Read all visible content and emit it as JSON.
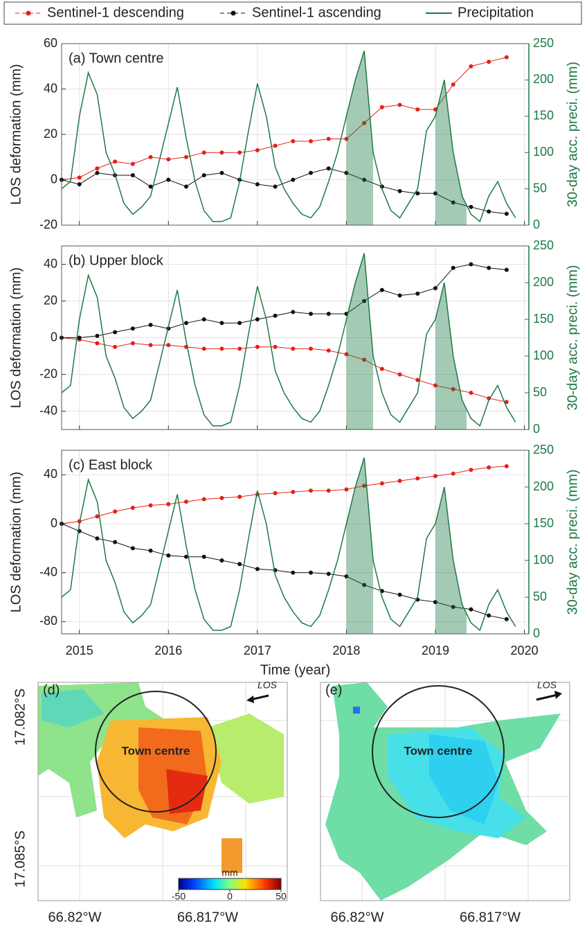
{
  "chart_data": [
    {
      "type": "line",
      "title": "(a) Town centre",
      "ylabel": "LOS deformation (mm)",
      "y2label": "30-day acc. preci. (mm)",
      "xlim": [
        2014.8,
        2020.05
      ],
      "xticks": [
        2015,
        2016,
        2017,
        2018,
        2019,
        2020
      ],
      "ylim": [
        -20,
        60
      ],
      "yticks": [
        -20,
        0,
        20,
        40,
        60
      ],
      "y2lim": [
        0,
        250
      ],
      "y2ticks": [
        0,
        50,
        100,
        150,
        200,
        250
      ],
      "grid": true,
      "shade": [
        [
          2018.0,
          2018.3
        ],
        [
          2019.0,
          2019.35
        ]
      ],
      "x": [
        2014.8,
        2015.0,
        2015.2,
        2015.4,
        2015.6,
        2015.8,
        2016.0,
        2016.2,
        2016.4,
        2016.6,
        2016.8,
        2017.0,
        2017.2,
        2017.4,
        2017.6,
        2017.8,
        2018.0,
        2018.2,
        2018.4,
        2018.6,
        2018.8,
        2019.0,
        2019.2,
        2019.4,
        2019.6,
        2019.8
      ],
      "series": [
        {
          "name": "Sentinel-1 descending",
          "color": "#e32119",
          "values": [
            0,
            1,
            5,
            8,
            7,
            10,
            9,
            10,
            12,
            12,
            12,
            13,
            15,
            17,
            17,
            18,
            18,
            25,
            32,
            33,
            31,
            31,
            42,
            50,
            52,
            54
          ]
        },
        {
          "name": "Sentinel-1 ascending",
          "color": "#111111",
          "values": [
            0,
            -2,
            3,
            2,
            2,
            -3,
            0,
            -3,
            2,
            3,
            0,
            -2,
            -3,
            0,
            3,
            5,
            3,
            0,
            -3,
            -5,
            -6,
            -6,
            -10,
            -12,
            -14,
            -15
          ]
        },
        {
          "name": "Precipitation",
          "color": "#1b7a45",
          "axis": "y2",
          "x": [
            2014.8,
            2014.9,
            2015.0,
            2015.1,
            2015.2,
            2015.3,
            2015.4,
            2015.5,
            2015.6,
            2015.7,
            2015.8,
            2015.9,
            2016.0,
            2016.1,
            2016.2,
            2016.3,
            2016.4,
            2016.5,
            2016.6,
            2016.7,
            2016.8,
            2016.9,
            2017.0,
            2017.1,
            2017.2,
            2017.3,
            2017.4,
            2017.5,
            2017.6,
            2017.7,
            2017.8,
            2017.9,
            2018.0,
            2018.1,
            2018.2,
            2018.3,
            2018.4,
            2018.5,
            2018.6,
            2018.7,
            2018.8,
            2018.9,
            2019.0,
            2019.1,
            2019.2,
            2019.3,
            2019.4,
            2019.5,
            2019.6,
            2019.7,
            2019.8,
            2019.9
          ],
          "values": [
            50,
            60,
            150,
            210,
            180,
            100,
            70,
            30,
            15,
            25,
            40,
            90,
            140,
            190,
            120,
            60,
            20,
            5,
            5,
            10,
            60,
            130,
            195,
            150,
            80,
            50,
            30,
            15,
            10,
            25,
            60,
            100,
            150,
            200,
            240,
            100,
            50,
            20,
            10,
            30,
            50,
            130,
            150,
            200,
            100,
            40,
            15,
            5,
            40,
            60,
            30,
            10
          ]
        }
      ]
    },
    {
      "type": "line",
      "title": "(b) Upper block",
      "ylabel": "LOS deformation (mm)",
      "y2label": "30-day acc. preci. (mm)",
      "xlim": [
        2014.8,
        2020.05
      ],
      "xticks": [
        2015,
        2016,
        2017,
        2018,
        2019,
        2020
      ],
      "ylim": [
        -50,
        50
      ],
      "yticks": [
        -40,
        -20,
        0,
        20,
        40
      ],
      "y2lim": [
        0,
        250
      ],
      "y2ticks": [
        0,
        50,
        100,
        150,
        200,
        250
      ],
      "grid": true,
      "shade": [
        [
          2018.0,
          2018.3
        ],
        [
          2019.0,
          2019.35
        ]
      ],
      "x": [
        2014.8,
        2015.0,
        2015.2,
        2015.4,
        2015.6,
        2015.8,
        2016.0,
        2016.2,
        2016.4,
        2016.6,
        2016.8,
        2017.0,
        2017.2,
        2017.4,
        2017.6,
        2017.8,
        2018.0,
        2018.2,
        2018.4,
        2018.6,
        2018.8,
        2019.0,
        2019.2,
        2019.4,
        2019.6,
        2019.8
      ],
      "series": [
        {
          "name": "Sentinel-1 descending",
          "color": "#e32119",
          "values": [
            0,
            -1,
            -3,
            -5,
            -3,
            -4,
            -4,
            -5,
            -6,
            -6,
            -6,
            -5,
            -5,
            -6,
            -6,
            -7,
            -9,
            -12,
            -17,
            -20,
            -23,
            -26,
            -28,
            -30,
            -33,
            -35
          ]
        },
        {
          "name": "Sentinel-1 ascending",
          "color": "#111111",
          "values": [
            0,
            0,
            1,
            3,
            5,
            7,
            5,
            8,
            10,
            8,
            8,
            10,
            12,
            14,
            13,
            13,
            13,
            20,
            26,
            23,
            24,
            27,
            38,
            40,
            38,
            37
          ]
        },
        {
          "name": "Precipitation",
          "color": "#1b7a45",
          "axis": "y2",
          "x": [
            2014.8,
            2014.9,
            2015.0,
            2015.1,
            2015.2,
            2015.3,
            2015.4,
            2015.5,
            2015.6,
            2015.7,
            2015.8,
            2015.9,
            2016.0,
            2016.1,
            2016.2,
            2016.3,
            2016.4,
            2016.5,
            2016.6,
            2016.7,
            2016.8,
            2016.9,
            2017.0,
            2017.1,
            2017.2,
            2017.3,
            2017.4,
            2017.5,
            2017.6,
            2017.7,
            2017.8,
            2017.9,
            2018.0,
            2018.1,
            2018.2,
            2018.3,
            2018.4,
            2018.5,
            2018.6,
            2018.7,
            2018.8,
            2018.9,
            2019.0,
            2019.1,
            2019.2,
            2019.3,
            2019.4,
            2019.5,
            2019.6,
            2019.7,
            2019.8,
            2019.9
          ],
          "values": [
            50,
            60,
            150,
            210,
            180,
            100,
            70,
            30,
            15,
            25,
            40,
            90,
            140,
            190,
            120,
            60,
            20,
            5,
            5,
            10,
            60,
            130,
            195,
            150,
            80,
            50,
            30,
            15,
            10,
            25,
            60,
            100,
            150,
            200,
            240,
            100,
            50,
            20,
            10,
            30,
            50,
            130,
            150,
            200,
            100,
            40,
            15,
            5,
            40,
            60,
            30,
            10
          ]
        }
      ]
    },
    {
      "type": "line",
      "title": "(c) East block",
      "ylabel": "LOS deformation (mm)",
      "y2label": "30-day acc. preci. (mm)",
      "xlabel": "Time (year)",
      "xlim": [
        2014.8,
        2020.05
      ],
      "xticks": [
        2015,
        2016,
        2017,
        2018,
        2019,
        2020
      ],
      "ylim": [
        -90,
        60
      ],
      "yticks": [
        -80,
        -40,
        0,
        40
      ],
      "y2lim": [
        0,
        250
      ],
      "y2ticks": [
        0,
        50,
        100,
        150,
        200,
        250
      ],
      "grid": true,
      "shade": [
        [
          2018.0,
          2018.3
        ],
        [
          2019.0,
          2019.35
        ]
      ],
      "x": [
        2014.8,
        2015.0,
        2015.2,
        2015.4,
        2015.6,
        2015.8,
        2016.0,
        2016.2,
        2016.4,
        2016.6,
        2016.8,
        2017.0,
        2017.2,
        2017.4,
        2017.6,
        2017.8,
        2018.0,
        2018.2,
        2018.4,
        2018.6,
        2018.8,
        2019.0,
        2019.2,
        2019.4,
        2019.6,
        2019.8
      ],
      "series": [
        {
          "name": "Sentinel-1 descending",
          "color": "#e32119",
          "values": [
            0,
            2,
            6,
            10,
            13,
            15,
            16,
            18,
            20,
            21,
            22,
            24,
            25,
            26,
            27,
            27,
            28,
            31,
            33,
            35,
            37,
            39,
            41,
            44,
            46,
            47
          ]
        },
        {
          "name": "Sentinel-1 ascending",
          "color": "#111111",
          "values": [
            0,
            -6,
            -12,
            -15,
            -20,
            -22,
            -26,
            -27,
            -27,
            -30,
            -33,
            -37,
            -38,
            -40,
            -40,
            -41,
            -43,
            -50,
            -55,
            -58,
            -62,
            -64,
            -68,
            -70,
            -75,
            -78
          ]
        },
        {
          "name": "Precipitation",
          "color": "#1b7a45",
          "axis": "y2",
          "x": [
            2014.8,
            2014.9,
            2015.0,
            2015.1,
            2015.2,
            2015.3,
            2015.4,
            2015.5,
            2015.6,
            2015.7,
            2015.8,
            2015.9,
            2016.0,
            2016.1,
            2016.2,
            2016.3,
            2016.4,
            2016.5,
            2016.6,
            2016.7,
            2016.8,
            2016.9,
            2017.0,
            2017.1,
            2017.2,
            2017.3,
            2017.4,
            2017.5,
            2017.6,
            2017.7,
            2017.8,
            2017.9,
            2018.0,
            2018.1,
            2018.2,
            2018.3,
            2018.4,
            2018.5,
            2018.6,
            2018.7,
            2018.8,
            2018.9,
            2019.0,
            2019.1,
            2019.2,
            2019.3,
            2019.4,
            2019.5,
            2019.6,
            2019.7,
            2019.8,
            2019.9
          ],
          "values": [
            50,
            60,
            150,
            210,
            180,
            100,
            70,
            30,
            15,
            25,
            40,
            90,
            140,
            190,
            120,
            60,
            20,
            5,
            5,
            10,
            60,
            130,
            195,
            150,
            80,
            50,
            30,
            15,
            10,
            25,
            60,
            100,
            150,
            200,
            240,
            100,
            50,
            20,
            10,
            30,
            50,
            130,
            150,
            200,
            100,
            40,
            15,
            5,
            40,
            60,
            30,
            10
          ]
        }
      ]
    }
  ],
  "maps": [
    {
      "label": "(d)",
      "los": "LOS",
      "circle_label": "Town centre",
      "lat_ticks": [
        "17.082°S",
        "17.085°S"
      ],
      "lon_ticks": [
        "66.82°W",
        "66.817°W"
      ]
    },
    {
      "label": "(e)",
      "los": "LOS",
      "circle_label": "Town centre",
      "lon_ticks": [
        "66.82°W",
        "66.817°W"
      ]
    }
  ],
  "colorbar": {
    "title": "mm",
    "lim": [
      -50,
      50
    ],
    "ticks": [
      -50,
      0,
      50
    ]
  }
}
